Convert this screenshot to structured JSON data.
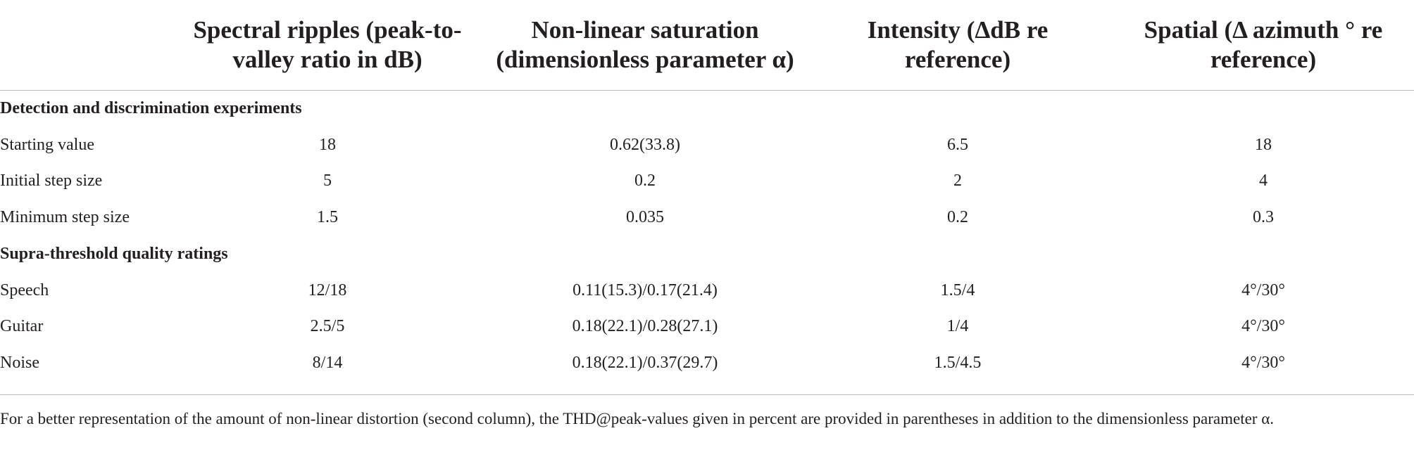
{
  "table": {
    "header": [
      "Spectral ripples (peak-to-valley ratio in dB)",
      "Non-linear saturation (dimensionless parameter α)",
      "Intensity (ΔdB re reference)",
      "Spatial (Δ azimuth ° re reference)"
    ],
    "sections": [
      {
        "title": "Detection and discrimination experiments",
        "rows": [
          {
            "label": "Starting value",
            "cells": [
              "18",
              "0.62(33.8)",
              "6.5",
              "18"
            ]
          },
          {
            "label": "Initial step size",
            "cells": [
              "5",
              "0.2",
              "2",
              "4"
            ]
          },
          {
            "label": "Minimum step size",
            "cells": [
              "1.5",
              "0.035",
              "0.2",
              "0.3"
            ]
          }
        ]
      },
      {
        "title": "Supra-threshold quality ratings",
        "rows": [
          {
            "label": "Speech",
            "cells": [
              "12/18",
              "0.11(15.3)/0.17(21.4)",
              "1.5/4",
              "4°/30°"
            ]
          },
          {
            "label": "Guitar",
            "cells": [
              "2.5/5",
              "0.18(22.1)/0.28(27.1)",
              "1/4",
              "4°/30°"
            ]
          },
          {
            "label": "Noise",
            "cells": [
              "8/14",
              "0.18(22.1)/0.37(29.7)",
              "1.5/4.5",
              "4°/30°"
            ]
          }
        ]
      }
    ],
    "footnote": "For a better representation of the amount of non-linear distortion (second column), the THD@peak-values given in percent are provided in parentheses in addition to the dimensionless parameter α."
  }
}
